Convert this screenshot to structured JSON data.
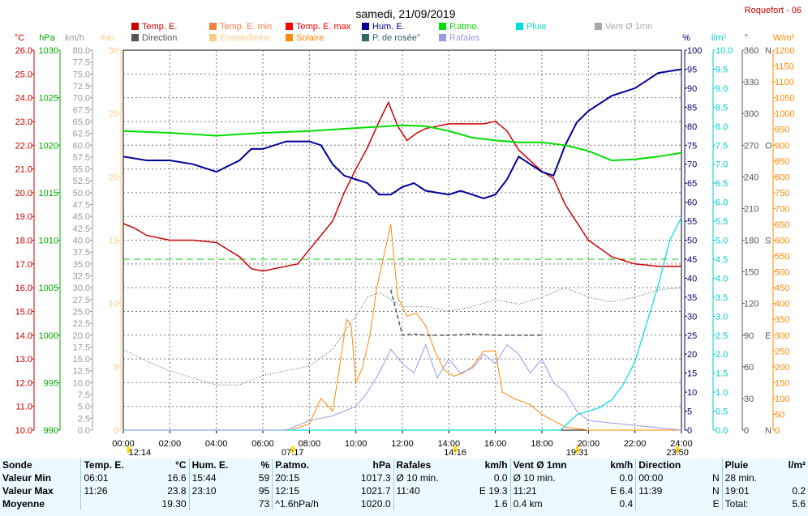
{
  "header": {
    "title": "samedi, 21/09/2019",
    "station": "Roquefort - 06"
  },
  "legend": [
    {
      "label": "Temp. E.",
      "color": "#cc0000"
    },
    {
      "label": "Temp. E. min",
      "color": "#f08040"
    },
    {
      "label": "Temp. E. max",
      "color": "#ff0000"
    },
    {
      "label": "Hum. E.",
      "color": "#000099"
    },
    {
      "label": "P.atmo.",
      "color": "#00dd00"
    },
    {
      "label": "Pluie",
      "color": "#00dddd"
    },
    {
      "label": "Vent Ø 1mn",
      "color": "#aaaaaa"
    },
    {
      "label": "Direction",
      "color": "#555555"
    },
    {
      "label": "Ensoleilleme",
      "color": "#ffcc88"
    },
    {
      "label": "Solaire",
      "color": "#ff8800"
    },
    {
      "label": "P. de rosée°",
      "color": "#336666"
    },
    {
      "label": "Rafales",
      "color": "#9999ee"
    }
  ],
  "axes": {
    "temp": {
      "unit": "°C",
      "min": 10,
      "max": 26,
      "step": 1,
      "color": "#cc0000"
    },
    "press": {
      "unit": "hPa",
      "min": 990,
      "max": 1030,
      "step": 5,
      "color": "#00aa00"
    },
    "wind": {
      "unit": "km/h",
      "min": 0,
      "max": 80,
      "step": 2.5,
      "color": "#999999"
    },
    "sun": {
      "unit": "min",
      "min": 0,
      "max": 30,
      "step": 5,
      "color": "#ffcc88"
    },
    "hum": {
      "unit": "%",
      "min": 0,
      "max": 100,
      "step": 5,
      "color": "#000066"
    },
    "rain": {
      "unit": "l/m²",
      "min": 0,
      "max": 10,
      "step": 0.5,
      "color": "#00cccc"
    },
    "dir": {
      "unit": "°",
      "min": 0,
      "max": 360,
      "step": 30,
      "color": "#555555"
    },
    "solar": {
      "unit": "W/m²",
      "min": 0,
      "max": 1200,
      "step": 50,
      "color": "#ff8800"
    }
  },
  "dir_labels": [
    {
      "deg": 0,
      "text": "N"
    },
    {
      "deg": 90,
      "text": "E"
    },
    {
      "deg": 180,
      "text": "S"
    },
    {
      "deg": 270,
      "text": "O"
    },
    {
      "deg": 360,
      "text": "N"
    }
  ],
  "time_ticks": [
    "00:00",
    "02:00",
    "04:00",
    "06:00",
    "08:00",
    "10:00",
    "12:00",
    "14:00",
    "16:00",
    "18:00",
    "20:00",
    "22:00",
    "24:00"
  ],
  "markers": [
    {
      "t": 0.23,
      "label": "12:14"
    },
    {
      "t": 7.28,
      "label": "07:17"
    },
    {
      "t": 14.27,
      "label": "14:16"
    },
    {
      "t": 19.52,
      "label": "19:31"
    },
    {
      "t": 23.83,
      "label": "23:50"
    }
  ],
  "chart_data": {
    "type": "line",
    "title": "samedi, 21/09/2019",
    "x_range": [
      "00:00",
      "24:00"
    ],
    "series": [
      {
        "name": "Temp. E.",
        "axis": "temp",
        "x": [
          0,
          0.5,
          1,
          2,
          3,
          4,
          5,
          5.5,
          6,
          7,
          7.5,
          8,
          9,
          9.5,
          10,
          10.5,
          11,
          11.4,
          11.8,
          12.2,
          12.6,
          13,
          14,
          15,
          15.5,
          16,
          16.5,
          17,
          18,
          18.5,
          19,
          20,
          21,
          22,
          23,
          24
        ],
        "y": [
          18.7,
          18.5,
          18.2,
          18.0,
          18.0,
          17.9,
          17.3,
          16.8,
          16.7,
          16.9,
          17.0,
          17.6,
          18.8,
          20.0,
          21.0,
          21.9,
          23.0,
          23.8,
          22.8,
          22.2,
          22.5,
          22.7,
          22.9,
          22.9,
          22.9,
          23.0,
          22.6,
          21.8,
          20.9,
          20.6,
          19.5,
          18.0,
          17.3,
          17.0,
          16.9,
          16.9
        ]
      },
      {
        "name": "Hum. E.",
        "axis": "hum",
        "x": [
          0,
          1,
          2,
          3,
          4,
          5,
          5.5,
          6,
          7,
          8,
          8.5,
          9,
          9.5,
          10,
          10.5,
          11,
          11.5,
          12,
          12.5,
          13,
          14,
          14.5,
          15,
          15.5,
          16,
          16.5,
          17,
          18,
          18.5,
          19,
          19.5,
          20,
          21,
          22,
          23,
          24
        ],
        "y": [
          72,
          71,
          71,
          70,
          68,
          71,
          74,
          74,
          76,
          76,
          75,
          70,
          67,
          66,
          65,
          62,
          62,
          64,
          65,
          63,
          62,
          63,
          62,
          61,
          62,
          66,
          72,
          68,
          67,
          75,
          81,
          84,
          88,
          90,
          94,
          95
        ]
      },
      {
        "name": "P.atmo.",
        "axis": "press",
        "x": [
          0,
          2,
          4,
          6,
          8,
          10,
          12,
          13,
          14,
          15,
          16,
          17,
          18,
          19,
          20,
          21,
          22,
          23,
          24
        ],
        "y": [
          1021.5,
          1021.3,
          1021.0,
          1021.3,
          1021.5,
          1021.8,
          1022.1,
          1022.0,
          1021.5,
          1020.8,
          1020.5,
          1020.3,
          1020.3,
          1020.0,
          1019.4,
          1018.4,
          1018.5,
          1018.8,
          1019.2
        ]
      },
      {
        "name": "P. de rosée°",
        "axis": "temp",
        "x": [
          0,
          1,
          2,
          3,
          4,
          5,
          6,
          7,
          8,
          9,
          10,
          10.5,
          11,
          12,
          13,
          14,
          15,
          16,
          17,
          18,
          19,
          20,
          21,
          22,
          23,
          24
        ],
        "y": [
          13.4,
          12.9,
          12.5,
          12.2,
          11.9,
          11.9,
          12.3,
          12.5,
          12.7,
          13.4,
          14.8,
          15.6,
          15.8,
          15.2,
          15.2,
          15.0,
          15.2,
          15.5,
          15.3,
          15.6,
          16.0,
          15.6,
          15.4,
          15.6,
          15.9,
          16.0
        ]
      },
      {
        "name": "Solaire",
        "axis": "solar",
        "x": [
          0,
          7.2,
          8,
          8.5,
          9,
          9.3,
          9.6,
          9.8,
          10,
          10.3,
          10.6,
          10.9,
          11.2,
          11.5,
          11.8,
          12.2,
          12.6,
          13,
          13.4,
          13.8,
          14.2,
          14.6,
          15,
          15.5,
          16,
          16.3,
          16.8,
          17.5,
          18,
          18.5,
          19,
          20,
          24
        ],
        "y": [
          0,
          0,
          20,
          100,
          60,
          200,
          350,
          330,
          150,
          200,
          300,
          450,
          550,
          650,
          420,
          360,
          370,
          330,
          250,
          190,
          170,
          180,
          200,
          250,
          250,
          120,
          100,
          80,
          50,
          30,
          10,
          0,
          0
        ]
      },
      {
        "name": "Pluie",
        "axis": "rain",
        "x": [
          0,
          18.8,
          19.5,
          20,
          20.5,
          21,
          21.5,
          22,
          22.5,
          23,
          23.5,
          24
        ],
        "y": [
          0,
          0,
          0.4,
          0.5,
          0.6,
          0.8,
          1.2,
          1.8,
          2.8,
          3.8,
          5.0,
          5.6
        ]
      },
      {
        "name": "Rafales",
        "axis": "wind",
        "x": [
          0,
          7,
          8,
          9,
          10,
          10.5,
          11,
          11.5,
          12,
          12.5,
          13,
          13.5,
          14,
          14.5,
          15,
          15.5,
          16,
          16.5,
          17,
          17.5,
          18,
          18.5,
          19,
          19.5,
          20,
          24
        ],
        "y": [
          0,
          0,
          2,
          3,
          5,
          8,
          12,
          17,
          14,
          12,
          18,
          11,
          15,
          12,
          13,
          16,
          14,
          18,
          16,
          12,
          15,
          10,
          8,
          4,
          2,
          0
        ]
      },
      {
        "name": "Direction",
        "axis": "dir",
        "x": [
          11.5,
          12,
          12.5,
          13,
          14,
          15,
          16,
          17,
          18
        ],
        "y": [
          133,
          90,
          91,
          90,
          90,
          91,
          90,
          90,
          90
        ]
      }
    ],
    "temp_min_dashed": 17.2
  },
  "summary": {
    "headers": [
      "Sonde",
      "Temp. E.",
      "°C",
      "Hum. E.",
      "%",
      "P.atmo.",
      "hPa",
      "Rafales",
      "km/h",
      "Vent Ø 1mn",
      "km/h",
      "Direction",
      "",
      "Pluie",
      "l/m²"
    ],
    "rows": [
      [
        "Valeur Min",
        "06:01",
        "16.6",
        "15:44",
        "59",
        "20:15",
        "1017.3",
        "Ø 10 min.",
        "0.0",
        "Ø 10 min.",
        "0.0",
        "00:00",
        "N",
        "28 min.",
        ""
      ],
      [
        "Valeur Max",
        "11:26",
        "23.8",
        "23:10",
        "95",
        "12:15",
        "1021.7",
        "11:40",
        "E 19.3",
        "11:21",
        "E 6.4",
        "11:39",
        "N",
        "19:01",
        "0.2"
      ],
      [
        "Moyenne",
        "",
        "19.30",
        "",
        "73",
        "^1.6hPa/h",
        "1020.0",
        "",
        "1.6",
        "0.4 km",
        "0.4",
        "",
        "E",
        "Total:",
        "5.6"
      ]
    ]
  }
}
